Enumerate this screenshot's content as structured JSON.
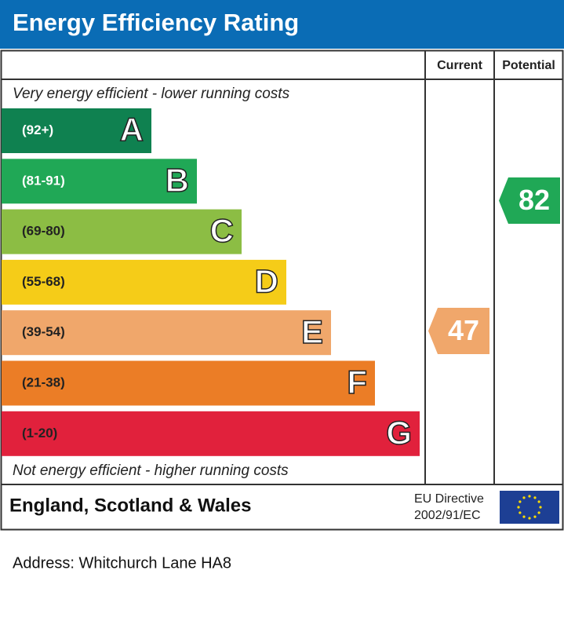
{
  "header": {
    "title": "Energy Efficiency Rating"
  },
  "columns": {
    "current": "Current",
    "potential": "Potential"
  },
  "top_note": "Very energy efficient - lower running costs",
  "bottom_note": "Not energy efficient - higher running costs",
  "bands": [
    {
      "range": "(92+)",
      "letter": "A",
      "color": "#0f8150"
    },
    {
      "range": "(81-91)",
      "letter": "B",
      "color": "#20a856"
    },
    {
      "range": "(69-80)",
      "letter": "C",
      "color": "#8cbd44"
    },
    {
      "range": "(55-68)",
      "letter": "D",
      "color": "#f5cc18"
    },
    {
      "range": "(39-54)",
      "letter": "E",
      "color": "#f0a76b"
    },
    {
      "range": "(21-38)",
      "letter": "F",
      "color": "#eb7d26"
    },
    {
      "range": "(1-20)",
      "letter": "G",
      "color": "#e1213c"
    }
  ],
  "ratings": {
    "current": {
      "value": 47,
      "color": "#f0a76b"
    },
    "potential": {
      "value": 82,
      "color": "#20a856"
    }
  },
  "footer": {
    "region": "England, Scotland & Wales",
    "directive_line1": "EU Directive",
    "directive_line2": "2002/91/EC"
  },
  "address": "Address: Whitchurch Lane HA8"
}
